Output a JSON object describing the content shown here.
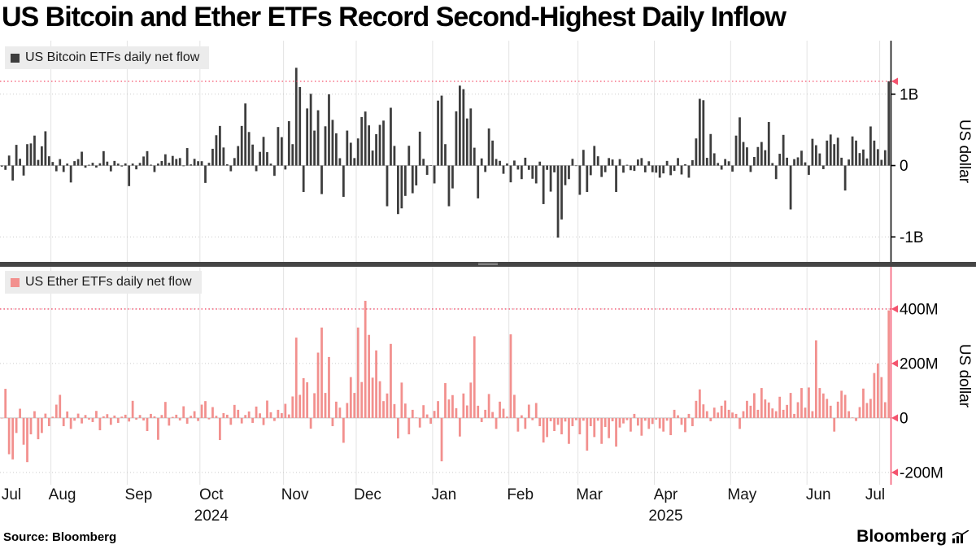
{
  "header": {
    "title": "US Bitcoin and Ether ETFs Record Second-Highest Daily Inflow"
  },
  "panels": [
    {
      "legend_label": "US Bitcoin ETFs daily net flow",
      "bar_color": "#3d3d3d",
      "axis_color": "#000000",
      "axis_style": "ticks",
      "y_axis_title": "US dollar",
      "yticks": [
        {
          "value": 1000,
          "label": "1B"
        },
        {
          "value": 0,
          "label": "0"
        },
        {
          "value": -1000,
          "label": "-1B"
        }
      ],
      "ylim": [
        -1350,
        1750
      ],
      "record_line": {
        "value": 1180,
        "color": "#f4536e"
      }
    },
    {
      "legend_label": "US Ether ETFs daily net flow",
      "bar_color": "#f2908e",
      "axis_color": "#f4536e",
      "axis_style": "arrows",
      "y_axis_title": "US dollar",
      "yticks": [
        {
          "value": 400,
          "label": "400M"
        },
        {
          "value": 200,
          "label": "200M"
        },
        {
          "value": 0,
          "label": "0"
        },
        {
          "value": -200,
          "label": "-200M"
        }
      ],
      "ylim": [
        -245,
        555
      ],
      "record_line": {
        "value": 400,
        "color": "#f4536e"
      }
    }
  ],
  "x_axis": {
    "months": [
      {
        "label": "Jul",
        "days": 14
      },
      {
        "label": "Aug",
        "days": 21
      },
      {
        "label": "Sep",
        "days": 20
      },
      {
        "label": "Oct",
        "days": 23
      },
      {
        "label": "Nov",
        "days": 20
      },
      {
        "label": "Dec",
        "days": 21
      },
      {
        "label": "Jan",
        "days": 21
      },
      {
        "label": "Feb",
        "days": 19
      },
      {
        "label": "Mar",
        "days": 21
      },
      {
        "label": "Apr",
        "days": 21
      },
      {
        "label": "May",
        "days": 21
      },
      {
        "label": "Jun",
        "days": 20
      },
      {
        "label": "Jul",
        "days": 3
      }
    ],
    "years": [
      {
        "label": "2024",
        "month_index": 3
      },
      {
        "label": "2025",
        "month_index": 9
      }
    ]
  },
  "chart_data": [
    {
      "type": "bar",
      "name": "US Bitcoin ETFs daily net flow",
      "ylabel": "US dollar",
      "unit": "USD millions",
      "ylim": [
        -1350,
        1750
      ],
      "record_level": 1180,
      "values": [
        -15,
        -60,
        140,
        -210,
        290,
        95,
        -140,
        300,
        310,
        420,
        79,
        270,
        480,
        130,
        50,
        -80,
        90,
        -90,
        28,
        -237,
        62,
        90,
        194,
        -30,
        11,
        39,
        -28,
        32,
        202,
        55,
        -81,
        65,
        28,
        -13,
        30,
        -288,
        28,
        -53,
        37,
        127,
        202,
        12,
        -91,
        28,
        63,
        158,
        39,
        135,
        92,
        105,
        -9,
        245,
        16,
        94,
        61,
        61,
        -243,
        39,
        235,
        425,
        555,
        253,
        18,
        -80,
        105,
        273,
        555,
        870,
        470,
        294,
        -79,
        192,
        402,
        188,
        27,
        -144,
        540,
        398,
        -55,
        622,
        300,
        1370,
        1100,
        -370,
        800,
        1005,
        490,
        775,
        -400,
        550,
        998,
        640,
        452,
        103,
        -438,
        490,
        320,
        105,
        380,
        680,
        757,
        563,
        210,
        440,
        570,
        630,
        -570,
        810,
        275,
        -680,
        -600,
        -425,
        277,
        -388,
        -278,
        475,
        94,
        -130,
        5,
        -250,
        910,
        980,
        300,
        -570,
        -320,
        760,
        1120,
        1070,
        660,
        800,
        250,
        -460,
        100,
        -90,
        520,
        350,
        92,
        66,
        -115,
        30,
        -235,
        70,
        -56,
        -190,
        110,
        -60,
        -185,
        -250,
        55,
        -540,
        -60,
        -365,
        -95,
        -1010,
        -755,
        -275,
        -190,
        94,
        -5,
        -410,
        220,
        -370,
        -135,
        275,
        130,
        -160,
        -93,
        105,
        85,
        -370,
        90,
        -100,
        11,
        -65,
        -75,
        85,
        105,
        -95,
        60,
        -93,
        -100,
        -170,
        -110,
        65,
        -135,
        -75,
        105,
        -125,
        19,
        -170,
        76,
        380,
        935,
        915,
        108,
        442,
        172,
        36,
        -57,
        91,
        60,
        -85,
        420,
        675,
        330,
        255,
        -90,
        120,
        260,
        330,
        215,
        610,
        35,
        -190,
        165,
        430,
        110,
        -615,
        90,
        115,
        208,
        45,
        -130,
        375,
        285,
        170,
        -50,
        350,
        435,
        300,
        390,
        110,
        -350,
        85,
        408,
        350,
        175,
        225,
        100,
        548,
        350,
        230,
        80,
        215,
        1180
      ]
    },
    {
      "type": "bar",
      "name": "US Ether ETFs daily net flow",
      "ylabel": "US dollar",
      "unit": "USD millions",
      "ylim": [
        -245,
        555
      ],
      "record_level": 400,
      "values": [
        0,
        107,
        -133,
        -152,
        -55,
        34,
        -98,
        -162,
        -60,
        25,
        -78,
        -55,
        16,
        -30,
        5,
        49,
        85,
        -30,
        24,
        -40,
        -10,
        16,
        -20,
        11,
        -6,
        -15,
        26,
        -45,
        6,
        14,
        -25,
        9,
        -18,
        5,
        12,
        -13,
        63,
        -6,
        11,
        -9,
        -48,
        15,
        6,
        -80,
        11,
        59,
        -28,
        4,
        12,
        -9,
        43,
        -21,
        8,
        25,
        -11,
        49,
        62,
        -5,
        40,
        8,
        -81,
        18,
        12,
        -25,
        48,
        30,
        -20,
        11,
        24,
        -18,
        42,
        17,
        -26,
        64,
        21,
        -11,
        30,
        18,
        52,
        13,
        79,
        295,
        85,
        146,
        131,
        -39,
        91,
        240,
        332,
        92,
        224,
        -30,
        60,
        38,
        -91,
        55,
        150,
        92,
        332,
        132,
        430,
        305,
        148,
        248,
        135,
        62,
        90,
        272,
        51,
        -75,
        130,
        53,
        -60,
        30,
        2,
        -35,
        47,
        13,
        -21,
        26,
        62,
        -159,
        128,
        68,
        84,
        36,
        -68,
        90,
        46,
        130,
        300,
        45,
        -15,
        30,
        88,
        22,
        -40,
        60,
        34,
        5,
        307,
        85,
        -50,
        10,
        -40,
        49,
        -8,
        55,
        -30,
        -90,
        -70,
        -12,
        -48,
        -25,
        -60,
        -13,
        -95,
        -30,
        -8,
        -60,
        -10,
        -120,
        -30,
        -70,
        -10,
        -95,
        -33,
        -74,
        -12,
        -105,
        -35,
        -20,
        -8,
        -50,
        15,
        -28,
        -65,
        -10,
        -40,
        -22,
        -6,
        -38,
        -50,
        -10,
        -63,
        30,
        10,
        -25,
        -52,
        15,
        -30,
        63,
        105,
        50,
        25,
        -12,
        38,
        20,
        45,
        64,
        30,
        20,
        15,
        -40,
        25,
        63,
        45,
        91,
        30,
        110,
        68,
        57,
        35,
        25,
        78,
        30,
        48,
        92,
        15,
        58,
        110,
        38,
        112,
        25,
        285,
        110,
        90,
        70,
        45,
        -50,
        60,
        100,
        85,
        25,
        2,
        -11,
        40,
        108,
        55,
        70,
        165,
        200,
        150,
        58,
        395
      ]
    }
  ],
  "footer": {
    "source": "Source: Bloomberg",
    "brand": "Bloomberg"
  }
}
